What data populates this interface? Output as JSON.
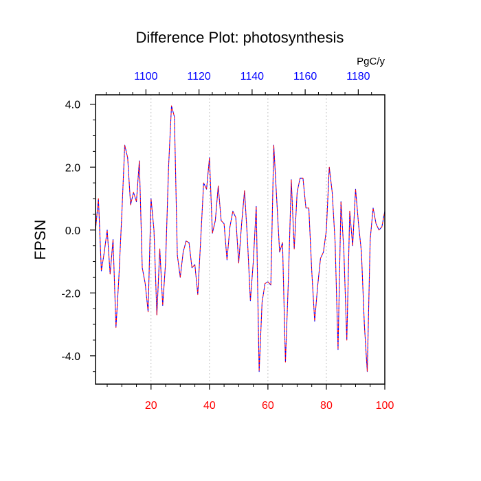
{
  "chart_data": {
    "type": "line",
    "title": "Difference Plot: photosynthesis",
    "ylabel": "FPSN",
    "top_axis_units": "PgC/y",
    "xlim": [
      1,
      100
    ],
    "ylim": [
      -4.9,
      4.3
    ],
    "x_ticks": [
      20,
      40,
      60,
      80,
      100
    ],
    "x_tick_labels": [
      "20",
      "40",
      "60",
      "80",
      "100"
    ],
    "x_tick_color": "#ff0000",
    "top_ticks": [
      1100,
      1120,
      1140,
      1160,
      1180
    ],
    "top_tick_labels": [
      "1100",
      "1120",
      "1140",
      "1160",
      "1180"
    ],
    "top_axis_range": [
      1081,
      1190
    ],
    "top_tick_color": "#0000ff",
    "y_ticks": [
      4.0,
      2.0,
      0.0,
      -2.0,
      -4.0
    ],
    "y_tick_labels": [
      "4.0",
      "2.0",
      "0.0",
      "-2.0",
      "-4.0"
    ],
    "vertical_grid": true,
    "series": [
      {
        "color": "#0000ff",
        "style": "dashed",
        "x": [
          1,
          2,
          3,
          4,
          5,
          6,
          7,
          8,
          9,
          10,
          11,
          12,
          13,
          14,
          15,
          16,
          17,
          18,
          19,
          20,
          21,
          22,
          23,
          24,
          25,
          26,
          27,
          28,
          29,
          30,
          31,
          32,
          33,
          34,
          35,
          36,
          37,
          38,
          39,
          40,
          41,
          42,
          43,
          44,
          45,
          46,
          47,
          48,
          49,
          50,
          51,
          52,
          53,
          54,
          55,
          56,
          57,
          58,
          59,
          60,
          61,
          62,
          63,
          64,
          65,
          66,
          67,
          68,
          69,
          70,
          71,
          72,
          73,
          74,
          75,
          76,
          77,
          78,
          79,
          80,
          81,
          82,
          83,
          84,
          85,
          86,
          87,
          88,
          89,
          90,
          91,
          92,
          93,
          94,
          95,
          96,
          97,
          98,
          99,
          100
        ],
        "y": [
          0.0,
          1.0,
          -1.3,
          -0.7,
          0.0,
          -1.4,
          -0.3,
          -3.1,
          -1.5,
          0.5,
          2.7,
          2.3,
          0.8,
          1.2,
          0.9,
          2.2,
          -1.2,
          -1.7,
          -2.6,
          1.0,
          0.0,
          -2.7,
          -0.6,
          -2.4,
          -1.0,
          2.0,
          3.95,
          3.6,
          -0.8,
          -1.5,
          -0.7,
          -0.35,
          -0.4,
          -1.2,
          -1.1,
          -2.05,
          -0.3,
          1.5,
          1.3,
          2.3,
          -0.1,
          0.3,
          1.4,
          0.3,
          0.2,
          -0.95,
          0.1,
          0.6,
          0.4,
          -1.05,
          0.2,
          1.25,
          -0.3,
          -2.25,
          -1.0,
          0.75,
          -4.5,
          -2.3,
          -1.7,
          -1.65,
          -1.75,
          2.7,
          1.0,
          -0.7,
          -0.4,
          -4.2,
          -1.6,
          1.6,
          -0.6,
          1.2,
          1.65,
          1.65,
          0.7,
          0.7,
          -1.3,
          -2.9,
          -1.8,
          -0.9,
          -0.7,
          0.0,
          2.0,
          1.2,
          -0.4,
          -3.8,
          0.9,
          -0.7,
          -3.5,
          0.6,
          -0.5,
          1.3,
          0.2,
          -0.7,
          -3.0,
          -4.5,
          -0.3,
          0.7,
          0.2,
          0.0,
          0.1,
          0.6
        ]
      },
      {
        "color": "#ff0000",
        "style": "dashed-offset",
        "x": [
          1,
          2,
          3,
          4,
          5,
          6,
          7,
          8,
          9,
          10,
          11,
          12,
          13,
          14,
          15,
          16,
          17,
          18,
          19,
          20,
          21,
          22,
          23,
          24,
          25,
          26,
          27,
          28,
          29,
          30,
          31,
          32,
          33,
          34,
          35,
          36,
          37,
          38,
          39,
          40,
          41,
          42,
          43,
          44,
          45,
          46,
          47,
          48,
          49,
          50,
          51,
          52,
          53,
          54,
          55,
          56,
          57,
          58,
          59,
          60,
          61,
          62,
          63,
          64,
          65,
          66,
          67,
          68,
          69,
          70,
          71,
          72,
          73,
          74,
          75,
          76,
          77,
          78,
          79,
          80,
          81,
          82,
          83,
          84,
          85,
          86,
          87,
          88,
          89,
          90,
          91,
          92,
          93,
          94,
          95,
          96,
          97,
          98,
          99,
          100
        ],
        "y": [
          0.0,
          1.0,
          -1.3,
          -0.7,
          0.0,
          -1.4,
          -0.3,
          -3.1,
          -1.5,
          0.5,
          2.7,
          2.3,
          0.8,
          1.2,
          0.9,
          2.2,
          -1.2,
          -1.7,
          -2.6,
          1.0,
          0.0,
          -2.7,
          -0.6,
          -2.4,
          -1.0,
          2.0,
          3.95,
          3.6,
          -0.8,
          -1.5,
          -0.7,
          -0.35,
          -0.4,
          -1.2,
          -1.1,
          -2.05,
          -0.3,
          1.5,
          1.3,
          2.3,
          -0.1,
          0.3,
          1.4,
          0.3,
          0.2,
          -0.95,
          0.1,
          0.6,
          0.4,
          -1.05,
          0.2,
          1.25,
          -0.3,
          -2.25,
          -1.0,
          0.75,
          -4.5,
          -2.3,
          -1.7,
          -1.65,
          -1.75,
          2.7,
          1.0,
          -0.7,
          -0.4,
          -4.2,
          -1.6,
          1.6,
          -0.6,
          1.2,
          1.65,
          1.65,
          0.7,
          0.7,
          -1.3,
          -2.9,
          -1.8,
          -0.9,
          -0.7,
          0.0,
          2.0,
          1.2,
          -0.4,
          -3.8,
          0.9,
          -0.7,
          -3.5,
          0.6,
          -0.5,
          1.3,
          0.2,
          -0.7,
          -3.0,
          -4.5,
          -0.3,
          0.7,
          0.2,
          0.0,
          0.1,
          0.6
        ]
      }
    ]
  }
}
